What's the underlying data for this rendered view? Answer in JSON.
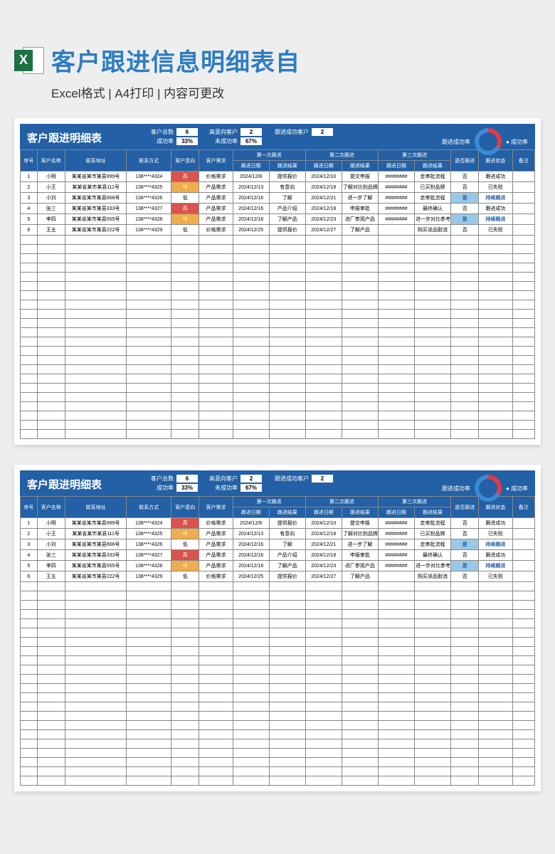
{
  "page": {
    "title": "客户跟进信息明细表自",
    "subtitle": "Excel格式 | A4打印 | 内容可更改"
  },
  "sheet": {
    "title": "客户跟进明细表",
    "stats": {
      "total_label": "客户总数",
      "total_val": "6",
      "high_label": "高意向客户",
      "high_val": "2",
      "success_cust_label": "跟进成功客户",
      "success_cust_val": "2",
      "succ_rate_label": "成功率",
      "succ_rate_val": "33%",
      "fail_rate_label": "未成功率",
      "fail_rate_val": "67%",
      "donut_label": "跟进成功率",
      "donut_legend": "● 成功率"
    },
    "columns": {
      "seq": "序号",
      "name": "客户名称",
      "addr": "联系地址",
      "phone": "联系方式",
      "intent": "客户意向",
      "need": "客户需求",
      "f1": "第一次跟进",
      "f2": "第二次跟进",
      "f3": "第三次跟进",
      "fd": "跟进日期",
      "fr": "跟进结果",
      "followed": "是否跟进",
      "status": "跟进状态",
      "note": "备注"
    },
    "rows": [
      {
        "seq": "1",
        "name": "小明",
        "addr": "某某省某市某县999号",
        "phone": "138****4324",
        "intent": "高",
        "need": "价格需求",
        "d1": "2024/12/8",
        "r1": "提供报价",
        "d2": "2024/12/10",
        "r2": "提交申报",
        "d3": "########",
        "r3": "走审批流程",
        "followed": "否",
        "status": "跟进成功",
        "note": ""
      },
      {
        "seq": "2",
        "name": "小王",
        "addr": "某某省某市某县111号",
        "phone": "138****4325",
        "intent": "中",
        "need": "产品需求",
        "d1": "2024/12/13",
        "r1": "有意向",
        "d2": "2024/12/18",
        "r2": "了解对比别品牌",
        "d3": "########",
        "r3": "已买别品牌",
        "followed": "否",
        "status": "已失败",
        "note": ""
      },
      {
        "seq": "3",
        "name": "小刘",
        "addr": "某某省某市某县666号",
        "phone": "138****4326",
        "intent": "低",
        "need": "产品需求",
        "d1": "2024/12/16",
        "r1": "了解",
        "d2": "2024/12/21",
        "r2": "进一步了解",
        "d3": "########",
        "r3": "走审批流程",
        "followed": "是",
        "status": "持续跟进",
        "note": ""
      },
      {
        "seq": "4",
        "name": "张三",
        "addr": "某某省某市某县333号",
        "phone": "138****4327",
        "intent": "高",
        "need": "产品需求",
        "d1": "2024/12/16",
        "r1": "产品介绍",
        "d2": "2024/12/18",
        "r2": "申报审批",
        "d3": "########",
        "r3": "最终确认",
        "followed": "否",
        "status": "跟进成功",
        "note": ""
      },
      {
        "seq": "5",
        "name": "李四",
        "addr": "某某省某市某县555号",
        "phone": "138****4328",
        "intent": "中",
        "need": "产品需求",
        "d1": "2024/12/18",
        "r1": "了解产品",
        "d2": "2024/12/23",
        "r2": "进厂参观产品",
        "d3": "########",
        "r3": "进一步对比参考",
        "followed": "是",
        "status": "持续跟进",
        "note": ""
      },
      {
        "seq": "6",
        "name": "王五",
        "addr": "某某省某市某县222号",
        "phone": "138****4329",
        "intent": "低",
        "need": "价格需求",
        "d1": "2024/12/25",
        "r1": "提供报价",
        "d2": "2024/12/27",
        "r2": "了解产品",
        "d3": "",
        "r3": "购买该品取消",
        "followed": "否",
        "status": "已失败",
        "note": ""
      }
    ],
    "empty_rows": 22,
    "intent_colors": {
      "高": "intent-high",
      "中": "intent-mid",
      "低": "intent-low"
    },
    "followed_yes": "是",
    "status_continue": "持续跟进"
  }
}
